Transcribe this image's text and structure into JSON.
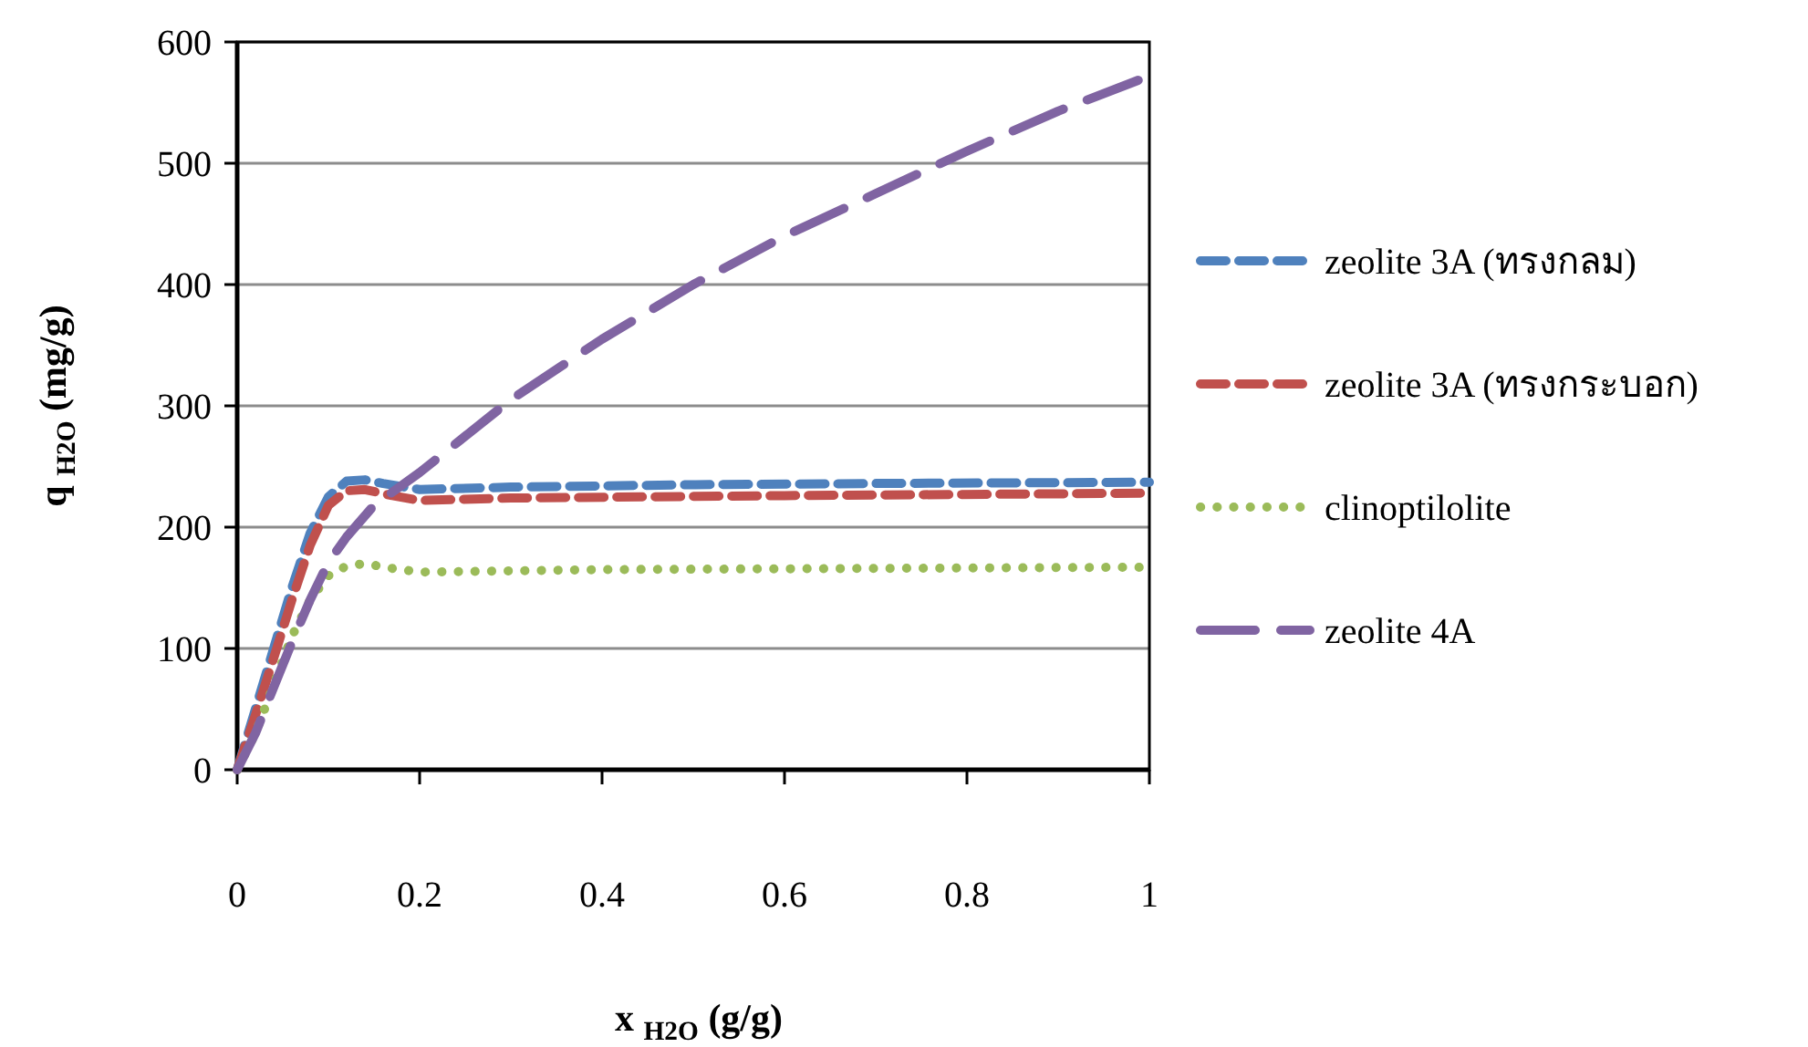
{
  "chart_data": {
    "type": "line",
    "xlabel": "x $_{H2O}$ (g/g)",
    "ylabel": "q $_{H2O}$ (mg/g)",
    "xlim": [
      0,
      1
    ],
    "ylim": [
      0,
      600
    ],
    "xticks": [
      0,
      0.2,
      0.4,
      0.6,
      0.8,
      1
    ],
    "yticks": [
      0,
      100,
      200,
      300,
      400,
      500,
      600
    ],
    "grid": "y",
    "legend": "right",
    "series": [
      {
        "name": "zeolite 3A (ทรงกลม)",
        "color": "#4f81bd",
        "line_style": "dashed",
        "x": [
          0,
          0.02,
          0.04,
          0.06,
          0.08,
          0.1,
          0.12,
          0.14,
          0.16,
          0.2,
          0.3,
          0.5,
          0.7,
          1
        ],
        "values": [
          0,
          50,
          100,
          150,
          195,
          225,
          238,
          239,
          236,
          231,
          233,
          235,
          236,
          237
        ]
      },
      {
        "name": "zeolite 3A (ทรงกระบอก)",
        "color": "#c0504d",
        "line_style": "dashed",
        "x": [
          0,
          0.02,
          0.04,
          0.06,
          0.08,
          0.1,
          0.12,
          0.14,
          0.17,
          0.2,
          0.3,
          0.6,
          1
        ],
        "values": [
          0,
          45,
          92,
          140,
          185,
          218,
          230,
          231,
          226,
          222,
          224,
          226,
          228
        ]
      },
      {
        "name": "clinoptilolite",
        "color": "#9bbb59",
        "line_style": "dotted",
        "x": [
          0,
          0.02,
          0.04,
          0.06,
          0.08,
          0.1,
          0.12,
          0.14,
          0.17,
          0.2,
          0.4,
          0.7,
          1
        ],
        "values": [
          0,
          30,
          70,
          110,
          140,
          160,
          168,
          170,
          166,
          163,
          165,
          166,
          167
        ]
      },
      {
        "name": "zeolite 4A",
        "color": "#8064a2",
        "line_style": "dashed",
        "x": [
          0,
          0.02,
          0.04,
          0.06,
          0.08,
          0.1,
          0.12,
          0.15,
          0.2,
          0.3,
          0.4,
          0.5,
          0.6,
          0.7,
          0.8,
          0.9,
          1
        ],
        "values": [
          0,
          30,
          68,
          105,
          140,
          171,
          192,
          218,
          245,
          305,
          355,
          400,
          440,
          475,
          510,
          543,
          572
        ]
      }
    ]
  }
}
